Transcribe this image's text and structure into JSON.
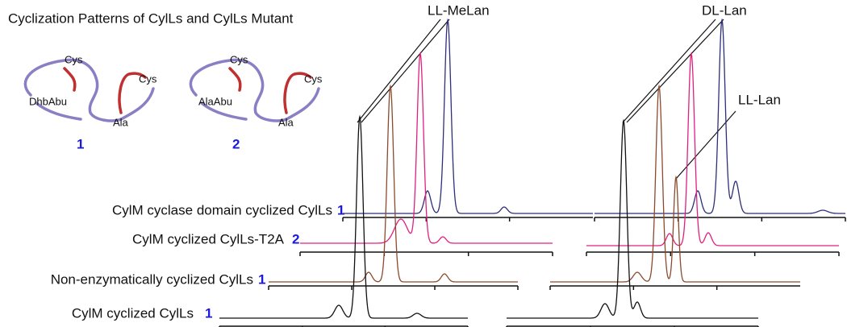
{
  "title": "Cyclization Patterns of CylLs and CylLs Mutant",
  "structures": [
    {
      "residues": [
        "Cys",
        "DhbAbu",
        "Cys",
        "Ala"
      ],
      "number": "1"
    },
    {
      "residues": [
        "Cys",
        "AlaAbu",
        "Cys",
        "Ala"
      ],
      "number": "2"
    }
  ],
  "peak_labels": [
    "LL-MeLan",
    "DL-Lan",
    "LL-Lan"
  ],
  "traces": [
    {
      "label": "CylM cyclase domain cyclized CylLs",
      "number": "1"
    },
    {
      "label": "CylM cyclized CylLs-T2A",
      "number": "2"
    },
    {
      "label": "Non-enzymatically cyclized CylLs",
      "number": "1"
    },
    {
      "label": "CylM cyclized CylLs",
      "number": "1"
    }
  ]
}
